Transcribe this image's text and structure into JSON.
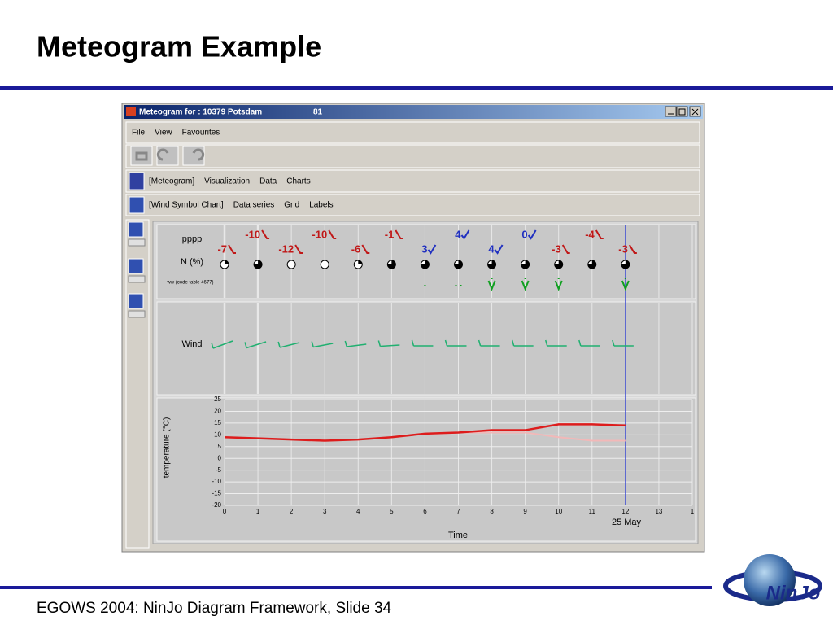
{
  "slide": {
    "title": "Meteogram Example",
    "footer": "EGOWS 2004: NinJo Diagram Framework, Slide 34",
    "logo": "NinJo"
  },
  "window": {
    "title": "Meteogram for : 10379 Potsdam",
    "title_number": "81",
    "menu": [
      "File",
      "View",
      "Favourites"
    ],
    "toolbar1": [
      "[Meteogram]",
      "Visualization",
      "Data",
      "Charts"
    ],
    "toolbar2": [
      "[Wind Symbol Chart]",
      "Data series",
      "Grid",
      "Labels"
    ]
  },
  "meteogram": {
    "pressure_label": "pppp",
    "cloud_label": "N (%)",
    "weather_label": "ww (code table 4677)",
    "wind_label": "Wind",
    "pressure_tendency": [
      -7,
      -10,
      -12,
      -10,
      -6,
      -1,
      3,
      4,
      4,
      0,
      -3,
      -4,
      -3
    ],
    "cloud_cover": [
      25,
      75,
      0,
      0,
      25,
      75,
      75,
      75,
      75,
      75,
      75,
      75,
      75
    ],
    "temperature": {
      "type": "line",
      "y_label": "temperature (°C)",
      "x_label": "Time",
      "date_label": "25 May",
      "xlim": [
        0,
        14
      ],
      "xticks": [
        0,
        1,
        2,
        3,
        4,
        5,
        6,
        7,
        8,
        9,
        10,
        11,
        12,
        13,
        {
          "value": 14,
          "label": "1"
        }
      ],
      "ylim": [
        -20,
        25
      ],
      "yticks": [
        -20,
        -15,
        -10,
        -5,
        0,
        5,
        10,
        15,
        20,
        25
      ],
      "marker_x": 12,
      "series": [
        {
          "color": "#f2b8b8",
          "values": [
            9,
            8.5,
            8,
            7.5,
            8,
            9,
            10.5,
            11,
            11,
            11,
            9,
            7.5,
            7.5
          ]
        },
        {
          "color": "#dd1c1c",
          "values": [
            9,
            8.5,
            8,
            7.5,
            8,
            9,
            10.5,
            11,
            12,
            12,
            14.5,
            14.5,
            14
          ]
        }
      ]
    }
  }
}
